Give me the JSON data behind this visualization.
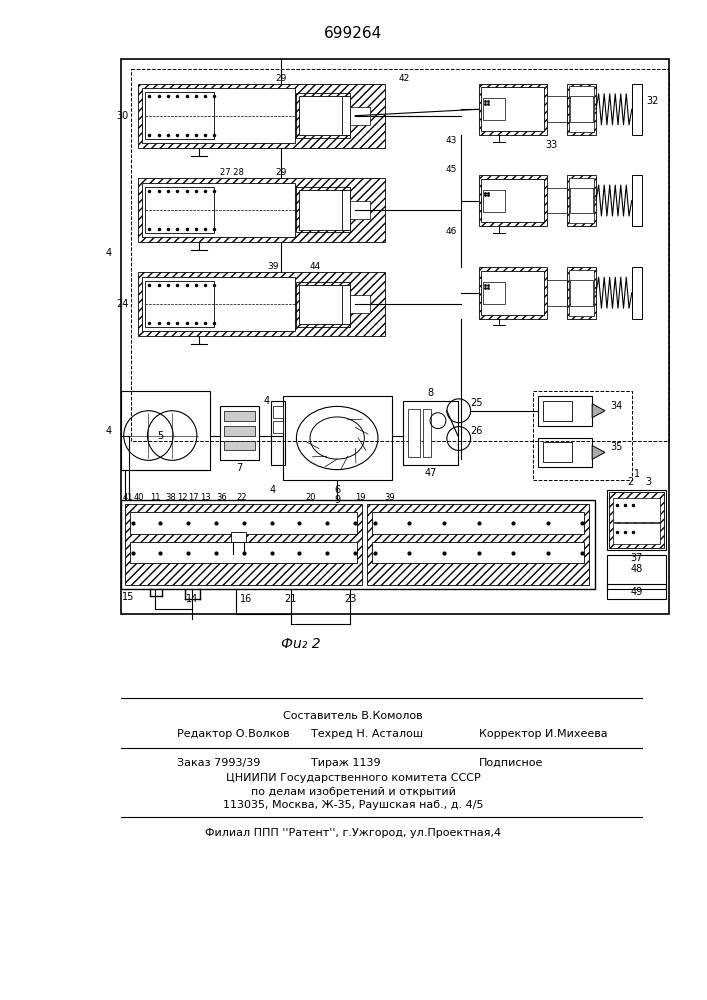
{
  "title": "699264",
  "fig_label": "Фu₂ 2",
  "background": "#ffffff",
  "footer_lines": [
    "Составитель В.Комолов",
    "Редактор О.Волков",
    "Техред Н. Асталош",
    "Корректор И.Михеева",
    "Заказ 7993/39",
    "Тираж 1139",
    "Подписное",
    "ЦНИИПИ Государственного комитета СССР",
    "по делам изобретений и открытий",
    "113035, Москва, Ж-35, Раушская наб., д. 4/5",
    "Филиал ППП ''Pатент'', г.Ужгород, ул.Проектная,4"
  ]
}
